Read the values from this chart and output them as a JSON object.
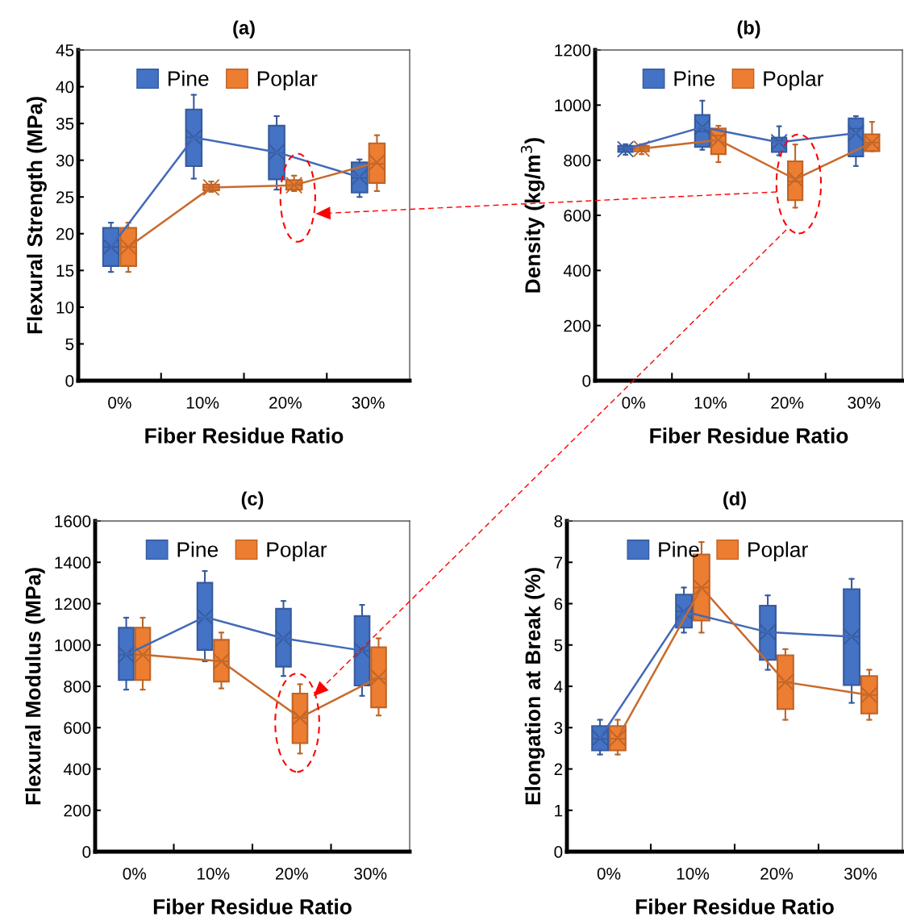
{
  "chart_data": [
    {
      "type": "box",
      "title": "(a)",
      "xlabel": "Fiber Residue Ratio",
      "ylabel": "Flexural Strength (MPa)",
      "categories": [
        "0%",
        "10%",
        "20%",
        "30%"
      ],
      "ylim": [
        0,
        45
      ],
      "yticks": [
        0,
        5,
        10,
        15,
        20,
        25,
        30,
        35,
        40,
        45
      ],
      "legend": "top",
      "grid": false,
      "series": [
        {
          "name": "Pine",
          "color": "#4472c4",
          "boxes": [
            {
              "low": 14.8,
              "q1": 15.6,
              "median": 18.2,
              "q3": 20.8,
              "high": 21.5,
              "mean": 18.2
            },
            {
              "low": 27.5,
              "q1": 29.2,
              "median": 33.1,
              "q3": 36.9,
              "high": 38.9,
              "mean": 33.1
            },
            {
              "low": 26.0,
              "q1": 27.4,
              "median": 31.0,
              "q3": 34.7,
              "high": 36.0,
              "mean": 31.1
            },
            {
              "low": 25.0,
              "q1": 25.6,
              "median": 27.6,
              "q3": 29.7,
              "high": 30.1,
              "mean": 27.7
            }
          ]
        },
        {
          "name": "Poplar",
          "color": "#ed7d31",
          "boxes": [
            {
              "low": 14.8,
              "q1": 15.6,
              "median": 18.2,
              "q3": 20.8,
              "high": 21.5,
              "mean": 18.2
            },
            {
              "low": 25.7,
              "q1": 25.9,
              "median": 26.3,
              "q3": 26.7,
              "high": 27.1,
              "mean": 26.3
            },
            {
              "low": 25.8,
              "q1": 26.0,
              "median": 26.6,
              "q3": 27.3,
              "high": 27.9,
              "mean": 26.6
            },
            {
              "low": 25.8,
              "q1": 26.9,
              "median": 29.5,
              "q3": 32.3,
              "high": 33.4,
              "mean": 29.7
            }
          ]
        },
        {
          "type": "line",
          "color": "#4169b8",
          "values": [
            18.2,
            33.1,
            31.1,
            27.7
          ]
        },
        {
          "type": "line",
          "color": "#c86a2c",
          "values": [
            18.2,
            26.3,
            26.6,
            29.7
          ]
        }
      ]
    },
    {
      "type": "box",
      "title": "(b)",
      "xlabel": "Fiber Residue Ratio",
      "ylabel": "Density (kg/m$^{3}$)",
      "categories": [
        "0%",
        "10%",
        "20%",
        "30%"
      ],
      "ylim": [
        0,
        1200
      ],
      "yticks": [
        0,
        200,
        400,
        600,
        800,
        1000,
        1200
      ],
      "legend": "top",
      "grid": false,
      "series": [
        {
          "name": "Pine",
          "color": "#4472c4",
          "boxes": [
            {
              "low": 820,
              "q1": 830,
              "median": 840,
              "q3": 852,
              "high": 858,
              "mean": 840
            },
            {
              "low": 838,
              "q1": 848,
              "median": 905,
              "q3": 964,
              "high": 1016,
              "mean": 920
            },
            {
              "low": 818,
              "q1": 830,
              "median": 870,
              "q3": 882,
              "high": 923,
              "mean": 865
            },
            {
              "low": 779,
              "q1": 814,
              "median": 915,
              "q3": 952,
              "high": 960,
              "mean": 898
            }
          ]
        },
        {
          "name": "Poplar",
          "color": "#ed7d31",
          "boxes": [
            {
              "low": 822,
              "q1": 832,
              "median": 842,
              "q3": 852,
              "high": 858,
              "mean": 842
            },
            {
              "low": 793,
              "q1": 822,
              "median": 889,
              "q3": 915,
              "high": 925,
              "mean": 874
            },
            {
              "low": 628,
              "q1": 655,
              "median": 723,
              "q3": 796,
              "high": 857,
              "mean": 731
            },
            {
              "low": 833,
              "q1": 833,
              "median": 864,
              "q3": 894,
              "high": 939,
              "mean": 864
            }
          ]
        },
        {
          "type": "line",
          "color": "#4169b8",
          "values": [
            840,
            920,
            865,
            898
          ]
        },
        {
          "type": "line",
          "color": "#c86a2c",
          "values": [
            842,
            874,
            731,
            864
          ]
        }
      ]
    },
    {
      "type": "box",
      "title": "(c)",
      "xlabel": "Fiber Residue Ratio",
      "ylabel": "Flexural Modulus (MPa)",
      "categories": [
        "0%",
        "10%",
        "20%",
        "30%"
      ],
      "ylim": [
        0,
        1600
      ],
      "yticks": [
        0,
        200,
        400,
        600,
        800,
        1000,
        1200,
        1400,
        1600
      ],
      "legend": "top",
      "grid": false,
      "series": [
        {
          "name": "Pine",
          "color": "#4472c4",
          "boxes": [
            {
              "low": 784,
              "q1": 830,
              "median": 953,
              "q3": 1084,
              "high": 1132,
              "mean": 953
            },
            {
              "low": 921,
              "q1": 976,
              "median": 1132,
              "q3": 1301,
              "high": 1358,
              "mean": 1136
            },
            {
              "low": 850,
              "q1": 895,
              "median": 1032,
              "q3": 1175,
              "high": 1213,
              "mean": 1032
            },
            {
              "low": 754,
              "q1": 804,
              "median": 973,
              "q3": 1140,
              "high": 1194,
              "mean": 973
            }
          ]
        },
        {
          "name": "Poplar",
          "color": "#ed7d31",
          "boxes": [
            {
              "low": 784,
              "q1": 830,
              "median": 953,
              "q3": 1084,
              "high": 1132,
              "mean": 953
            },
            {
              "low": 790,
              "q1": 823,
              "median": 921,
              "q3": 1025,
              "high": 1060,
              "mean": 921
            },
            {
              "low": 475,
              "q1": 525,
              "median": 648,
              "q3": 765,
              "high": 810,
              "mean": 648
            },
            {
              "low": 659,
              "q1": 698,
              "median": 837,
              "q3": 989,
              "high": 1032,
              "mean": 843
            }
          ]
        },
        {
          "type": "line",
          "color": "#4169b8",
          "values": [
            953,
            1136,
            1032,
            973
          ]
        },
        {
          "type": "line",
          "color": "#c86a2c",
          "values": [
            953,
            921,
            648,
            843
          ]
        }
      ]
    },
    {
      "type": "box",
      "title": "(d)",
      "xlabel": "Fiber Residue Ratio",
      "ylabel": "Elongation at Break (%)",
      "categories": [
        "0%",
        "10%",
        "20%",
        "30%"
      ],
      "ylim": [
        0,
        8
      ],
      "yticks": [
        0,
        1,
        2,
        3,
        4,
        5,
        6,
        7,
        8
      ],
      "legend": "top",
      "grid": false,
      "series": [
        {
          "name": "Pine",
          "color": "#4472c4",
          "boxes": [
            {
              "low": 2.35,
              "q1": 2.45,
              "median": 2.73,
              "q3": 3.04,
              "high": 3.19,
              "mean": 2.75
            },
            {
              "low": 5.3,
              "q1": 5.42,
              "median": 5.81,
              "q3": 6.22,
              "high": 6.39,
              "mean": 5.81
            },
            {
              "low": 4.4,
              "q1": 4.64,
              "median": 5.31,
              "q3": 5.95,
              "high": 6.2,
              "mean": 5.31
            },
            {
              "low": 3.6,
              "q1": 4.03,
              "median": 5.2,
              "q3": 6.35,
              "high": 6.6,
              "mean": 5.2
            }
          ]
        },
        {
          "name": "Poplar",
          "color": "#ed7d31",
          "boxes": [
            {
              "low": 2.35,
              "q1": 2.45,
              "median": 2.73,
              "q3": 3.04,
              "high": 3.19,
              "mean": 2.75
            },
            {
              "low": 5.3,
              "q1": 5.59,
              "median": 6.39,
              "q3": 7.19,
              "high": 7.49,
              "mean": 6.39
            },
            {
              "low": 3.19,
              "q1": 3.45,
              "median": 4.1,
              "q3": 4.75,
              "high": 4.9,
              "mean": 4.1
            },
            {
              "low": 3.19,
              "q1": 3.34,
              "median": 3.79,
              "q3": 4.25,
              "high": 4.4,
              "mean": 3.79
            }
          ]
        },
        {
          "type": "line",
          "color": "#4169b8",
          "values": [
            2.75,
            5.81,
            5.31,
            5.2
          ]
        },
        {
          "type": "line",
          "color": "#c86a2c",
          "values": [
            2.75,
            6.39,
            4.1,
            3.79
          ]
        }
      ]
    }
  ]
}
